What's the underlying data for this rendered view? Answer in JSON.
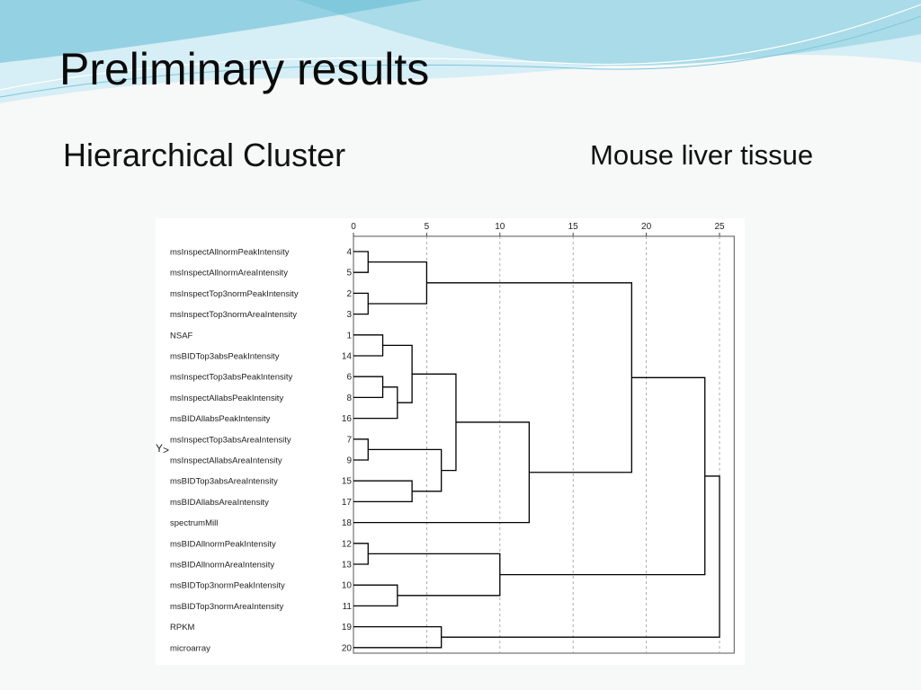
{
  "slide": {
    "title": "Preliminary results",
    "subtitle_left": "Hierarchical Cluster",
    "subtitle_right": "Mouse liver tissue"
  },
  "colors": {
    "background": "#f7f8f8",
    "wave_light": "#d6eef5",
    "wave_mid": "#a9dbe9",
    "wave_dark": "#5fb9d3",
    "line": "#000000",
    "grid": "#9a9a9a"
  },
  "dendrogram": {
    "y_axis_label": "Y",
    "x_axis_ticks": [
      0,
      5,
      10,
      15,
      20,
      25
    ],
    "x_range": [
      0,
      26
    ],
    "leaves": [
      {
        "label": "msInspectAllnormPeakIntensity",
        "num": "4"
      },
      {
        "label": "msInspectAllnormAreaIntensity",
        "num": "5"
      },
      {
        "label": "msInspectTop3normPeakIntensity",
        "num": "2"
      },
      {
        "label": "msInspectTop3normAreaIntensity",
        "num": "3"
      },
      {
        "label": "NSAF",
        "num": "1"
      },
      {
        "label": "msBIDTop3absPeakIntensity",
        "num": "14"
      },
      {
        "label": "msInspectTop3absPeakIntensity",
        "num": "6"
      },
      {
        "label": "msInspectAllabsPeakIntensity",
        "num": "8"
      },
      {
        "label": "msBIDAllabsPeakIntensity",
        "num": "16"
      },
      {
        "label": "msInspectTop3absAreaIntensity",
        "num": "7"
      },
      {
        "label": "msInspectAllabsAreaIntensity",
        "num": "9"
      },
      {
        "label": "msBIDTop3absAreaIntensity",
        "num": "15"
      },
      {
        "label": "msBIDAllabsAreaIntensity",
        "num": "17"
      },
      {
        "label": "spectrumMill",
        "num": "18"
      },
      {
        "label": "msBIDAllnormPeakIntensity",
        "num": "12"
      },
      {
        "label": "msBIDAllnormAreaIntensity",
        "num": "13"
      },
      {
        "label": "msBIDTop3normPeakIntensity",
        "num": "10"
      },
      {
        "label": "msBIDTop3normAreaIntensity",
        "num": "11"
      },
      {
        "label": "RPKM",
        "num": "19"
      },
      {
        "label": "microarray",
        "num": "20"
      }
    ],
    "merges": [
      {
        "a": "L0",
        "b": "L1",
        "d": 1.0
      },
      {
        "a": "L2",
        "b": "L3",
        "d": 1.0
      },
      {
        "a": "M0",
        "b": "M1",
        "d": 5.0
      },
      {
        "a": "L4",
        "b": "L5",
        "d": 2.0
      },
      {
        "a": "L6",
        "b": "L7",
        "d": 2.0
      },
      {
        "a": "M4",
        "b": "L8",
        "d": 3.0
      },
      {
        "a": "M3",
        "b": "M5",
        "d": 4.0
      },
      {
        "a": "L9",
        "b": "L10",
        "d": 1.0
      },
      {
        "a": "L11",
        "b": "L12",
        "d": 4.0
      },
      {
        "a": "M7",
        "b": "M8",
        "d": 6.0
      },
      {
        "a": "M6",
        "b": "M9",
        "d": 7.0
      },
      {
        "a": "M10",
        "b": "L13",
        "d": 12.0
      },
      {
        "a": "M2",
        "b": "M11",
        "d": 19.0
      },
      {
        "a": "L14",
        "b": "L15",
        "d": 1.0
      },
      {
        "a": "L16",
        "b": "L17",
        "d": 3.0
      },
      {
        "a": "M13",
        "b": "M14",
        "d": 10.0
      },
      {
        "a": "M12",
        "b": "M15",
        "d": 24.0
      },
      {
        "a": "L18",
        "b": "L19",
        "d": 6.0
      },
      {
        "a": "M16",
        "b": "M17",
        "d": 25.0
      }
    ]
  }
}
